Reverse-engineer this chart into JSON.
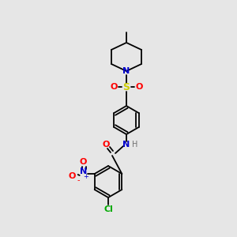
{
  "background_color": "#e6e6e6",
  "bond_color": "#000000",
  "text_colors": {
    "N": "#0000cc",
    "O": "#ff0000",
    "S": "#cccc00",
    "Cl": "#00aa00",
    "H": "#707070",
    "C": "#000000"
  },
  "figsize": [
    3.0,
    3.0
  ],
  "dpi": 100
}
